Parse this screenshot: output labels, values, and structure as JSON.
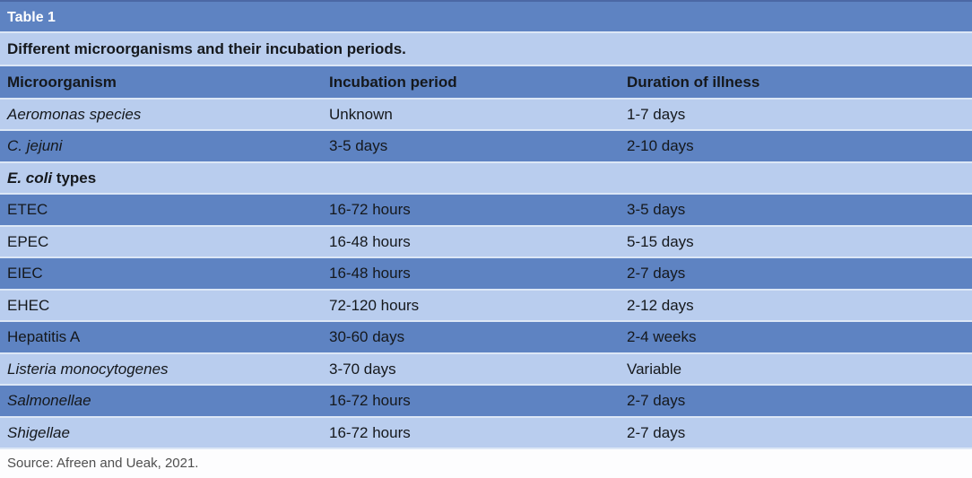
{
  "table": {
    "label": "Table 1",
    "caption": "Different microorganisms and their incubation periods.",
    "columns": [
      "Microorganism",
      "Incubation period",
      "Duration of illness"
    ],
    "rows": [
      {
        "microorganism": "Aeromonas species",
        "incubation": "Unknown",
        "duration": "1-7 days"
      },
      {
        "microorganism": "C. jejuni",
        "incubation": "3-5 days",
        "duration": "2-10 days"
      },
      {
        "section_italic": "E. coli",
        "section_rest": " types"
      },
      {
        "microorganism": "ETEC",
        "incubation": "16-72 hours",
        "duration": "3-5 days"
      },
      {
        "microorganism": "EPEC",
        "incubation": "16-48 hours",
        "duration": "5-15 days"
      },
      {
        "microorganism": "EIEC",
        "incubation": "16-48 hours",
        "duration": "2-7 days"
      },
      {
        "microorganism": "EHEC",
        "incubation": "72-120 hours",
        "duration": "2-12 days"
      },
      {
        "microorganism": "Hepatitis A",
        "incubation": "30-60 days",
        "duration": "2-4 weeks"
      },
      {
        "microorganism": "Listeria monocytogenes",
        "incubation": "3-70 days",
        "duration": "Variable"
      },
      {
        "microorganism": "Salmonellae",
        "incubation": "16-72 hours",
        "duration": "2-7 days"
      },
      {
        "microorganism": "Shigellae",
        "incubation": "16-72 hours",
        "duration": "2-7 days"
      }
    ],
    "source": "Source: Afreen and Ueak, 2021."
  },
  "colors": {
    "medium_blue": "#5e83c2",
    "light_blue": "#b9cdee",
    "separator": "#dce7f6",
    "text": "#15181c",
    "title_text": "#ffffff",
    "source_text": "#4f4f4f"
  }
}
